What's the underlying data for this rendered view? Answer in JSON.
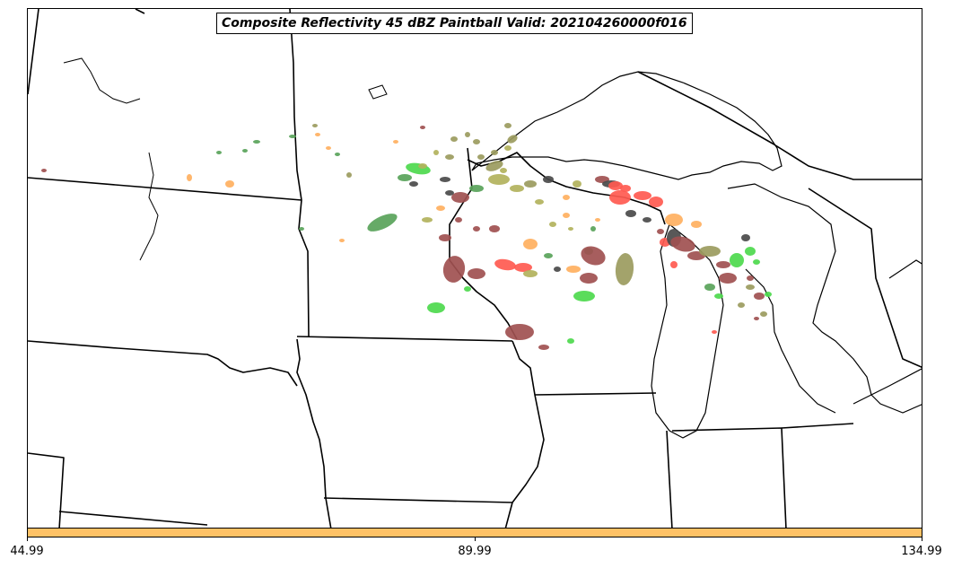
{
  "title": "Composite Reflectivity 45 dBZ Paintball Valid: 202104260000f016",
  "colorbar": {
    "color": "#ffc266",
    "ticks": [
      "44.99",
      "89.99",
      "134.99"
    ]
  },
  "paintball_colors": [
    "#59a35a",
    "#4dd94d",
    "#9b9b5e",
    "#b2b25c",
    "#a05050",
    "#ff5a50",
    "#ffb060",
    "#4a4a4a",
    "#c04040"
  ],
  "map": {
    "boundaries": "state and lake outlines, upper Midwest",
    "region": "Minnesota, Wisconsin, Iowa, Michigan, Lake Superior, Lake Michigan"
  }
}
